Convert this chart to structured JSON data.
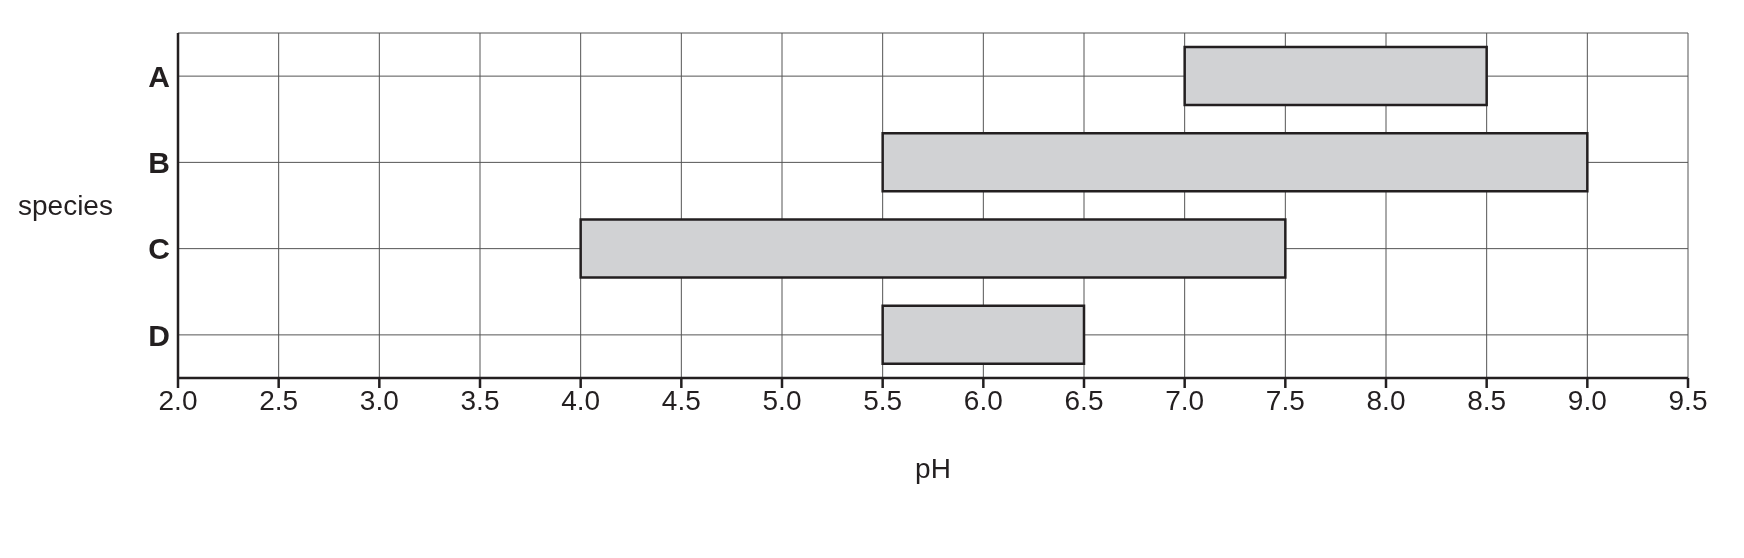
{
  "chart_data": {
    "type": "bar",
    "orientation": "horizontal",
    "xlabel": "pH",
    "ylabel": "species",
    "categories": [
      "A",
      "B",
      "C",
      "D"
    ],
    "base": [
      7.0,
      5.5,
      4.0,
      5.5
    ],
    "values": [
      1.5,
      3.5,
      3.5,
      1.0
    ],
    "color": "#d1d2d4",
    "xlim": [
      2.0,
      9.5
    ],
    "xticks": [
      {
        "value": 2,
        "label": "2.0"
      },
      {
        "value": 2.5,
        "label": "2.5"
      },
      {
        "value": 3,
        "label": "3.0"
      },
      {
        "value": 3.5,
        "label": "3.5"
      },
      {
        "value": 4,
        "label": "4.0"
      },
      {
        "value": 4.5,
        "label": "4.5"
      },
      {
        "value": 5,
        "label": "5.0"
      },
      {
        "value": 5.5,
        "label": "5.5"
      },
      {
        "value": 6,
        "label": "6.0"
      },
      {
        "value": 6.5,
        "label": "6.5"
      },
      {
        "value": 7,
        "label": "7.0"
      },
      {
        "value": 7.5,
        "label": "7.5"
      },
      {
        "value": 8,
        "label": "8.0"
      },
      {
        "value": 8.5,
        "label": "8.5"
      },
      {
        "value": 9,
        "label": "9.0"
      },
      {
        "value": 9.5,
        "label": "9.5"
      }
    ],
    "grid": true
  }
}
